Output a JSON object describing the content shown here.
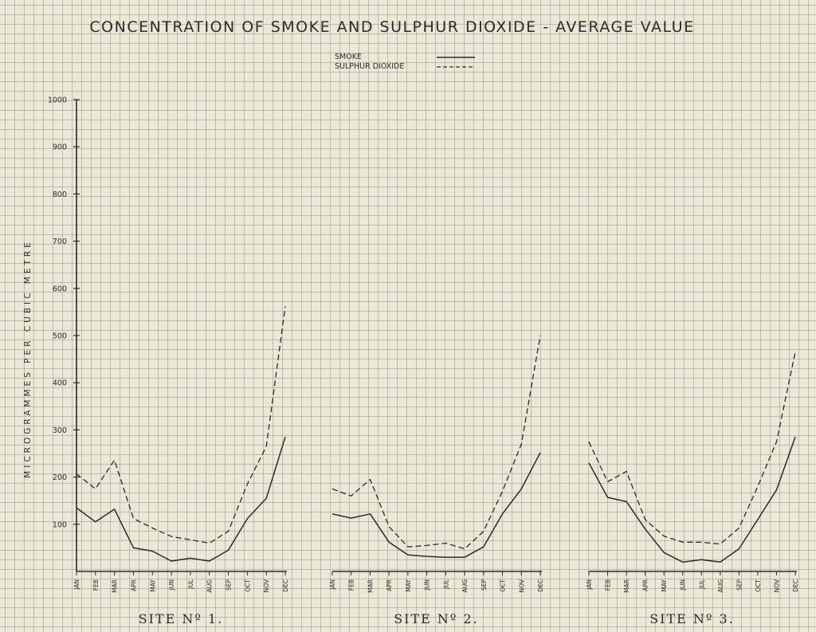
{
  "chart_data": {
    "type": "line",
    "title": "CONCENTRATION OF SMOKE AND SULPHUR DIOXIDE - AVERAGE VALUE",
    "ylabel": "MICROGRAMMES PER CUBIC METRE",
    "ylim": [
      0,
      1000
    ],
    "yticks": [
      "100",
      "200",
      "300",
      "400",
      "500",
      "600",
      "700",
      "800",
      "900",
      "1000"
    ],
    "grid": true,
    "legend": {
      "placement": "top-center",
      "entries": [
        {
          "label": "SMOKE",
          "style": "solid"
        },
        {
          "label": "SULPHUR DIOXIDE",
          "style": "dashed"
        }
      ]
    },
    "panels": [
      {
        "label": "SITE Nº 1.",
        "categories": [
          "JAN",
          "FEB",
          "MAR",
          "APR",
          "MAY",
          "JUN",
          "JUL",
          "AUG",
          "SEP",
          "OCT",
          "NOV",
          "DEC"
        ],
        "series": [
          {
            "name": "SMOKE",
            "values": [
              135,
              105,
              132,
              50,
              43,
              22,
              28,
              22,
              45,
              112,
              155,
              285
            ]
          },
          {
            "name": "SULPHUR DIOXIDE",
            "values": [
              207,
              175,
              236,
              112,
              92,
              74,
              67,
              60,
              85,
              185,
              265,
              562
            ]
          }
        ]
      },
      {
        "label": "SITE Nº 2.",
        "categories": [
          "JAN",
          "FEB",
          "MAR",
          "APR",
          "MAY",
          "JUN",
          "JUL",
          "AUG",
          "SEP",
          "OCT",
          "NOV",
          "DEC"
        ],
        "series": [
          {
            "name": "SMOKE",
            "values": [
              122,
              113,
              122,
              62,
              35,
              32,
              30,
              30,
              52,
              122,
              175,
              252
            ]
          },
          {
            "name": "SULPHUR DIOXIDE",
            "values": [
              175,
              160,
              195,
              95,
              52,
              55,
              60,
              48,
              85,
              170,
              270,
              500
            ]
          }
        ]
      },
      {
        "label": "SITE Nº 3.",
        "categories": [
          "JAN",
          "FEB",
          "MAR",
          "APR",
          "MAY",
          "JUN",
          "JUL",
          "AUG",
          "SEP",
          "OCT",
          "NOV",
          "DEC"
        ],
        "series": [
          {
            "name": "SMOKE",
            "values": [
              230,
              157,
              148,
              90,
              40,
              20,
              25,
              20,
              48,
              110,
              173,
              285
            ]
          },
          {
            "name": "SULPHUR DIOXIDE",
            "values": [
              275,
              190,
              212,
              110,
              75,
              62,
              62,
              58,
              92,
              180,
              275,
              465
            ]
          }
        ]
      }
    ],
    "colors": {
      "line": "#2a2a2a",
      "axis": "#2a2a2a",
      "grid": "#9a9a8f",
      "background": "#ece8d6"
    }
  }
}
